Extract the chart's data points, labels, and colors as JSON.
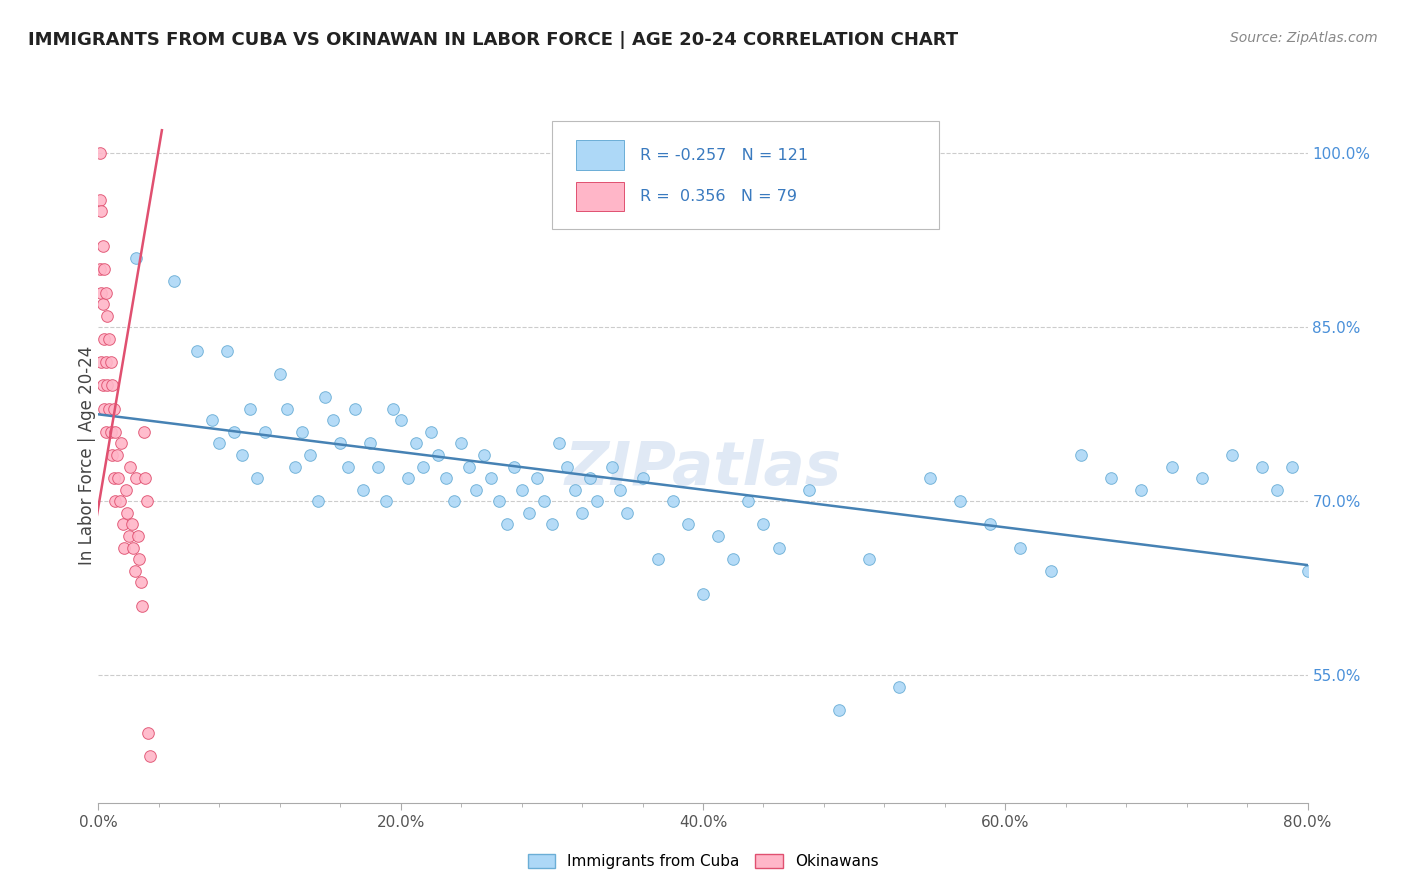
{
  "title": "IMMIGRANTS FROM CUBA VS OKINAWAN IN LABOR FORCE | AGE 20-24 CORRELATION CHART",
  "source": "Source: ZipAtlas.com",
  "ylabel": "In Labor Force | Age 20-24",
  "x_bottom_ticks": [
    "0.0%",
    "",
    "",
    "",
    "",
    "20.0%",
    "",
    "",
    "",
    "",
    "40.0%",
    "",
    "",
    "",
    "",
    "60.0%",
    "",
    "",
    "",
    "",
    "80.0%"
  ],
  "x_tick_vals": [
    0.0,
    0.04,
    0.08,
    0.12,
    0.16,
    0.2,
    0.24,
    0.28,
    0.32,
    0.36,
    0.4,
    0.44,
    0.48,
    0.52,
    0.56,
    0.6,
    0.64,
    0.68,
    0.72,
    0.76,
    0.8
  ],
  "x_tick_labels": [
    "0.0%",
    "",
    "",
    "",
    "",
    "20.0%",
    "",
    "",
    "",
    "",
    "40.0%",
    "",
    "",
    "",
    "",
    "60.0%",
    "",
    "",
    "",
    "",
    "80.0%"
  ],
  "x_range": [
    0.0,
    0.8
  ],
  "y_range": [
    0.44,
    1.04
  ],
  "y_tick_vals": [
    0.55,
    0.7,
    0.85,
    1.0
  ],
  "y_tick_labels": [
    "55.0%",
    "70.0%",
    "85.0%",
    "100.0%"
  ],
  "color_blue": "#add8f7",
  "color_pink": "#ffb6c8",
  "edge_blue": "#6baed6",
  "edge_pink": "#e05070",
  "line_blue_color": "#4682b4",
  "line_pink_color": "#e05070",
  "watermark": "ZIPatlas",
  "blue_line_x": [
    0.0,
    0.8
  ],
  "blue_line_y": [
    0.775,
    0.645
  ],
  "pink_line_x": [
    -0.002,
    0.042
  ],
  "pink_line_y": [
    0.68,
    1.02
  ],
  "cuba_x": [
    0.025,
    0.05,
    0.065,
    0.075,
    0.08,
    0.085,
    0.09,
    0.095,
    0.1,
    0.105,
    0.11,
    0.12,
    0.125,
    0.13,
    0.135,
    0.14,
    0.145,
    0.15,
    0.155,
    0.16,
    0.165,
    0.17,
    0.175,
    0.18,
    0.185,
    0.19,
    0.195,
    0.2,
    0.205,
    0.21,
    0.215,
    0.22,
    0.225,
    0.23,
    0.235,
    0.24,
    0.245,
    0.25,
    0.255,
    0.26,
    0.265,
    0.27,
    0.275,
    0.28,
    0.285,
    0.29,
    0.295,
    0.3,
    0.305,
    0.31,
    0.315,
    0.32,
    0.325,
    0.33,
    0.34,
    0.345,
    0.35,
    0.36,
    0.37,
    0.38,
    0.39,
    0.4,
    0.41,
    0.42,
    0.43,
    0.44,
    0.45,
    0.47,
    0.49,
    0.51,
    0.53,
    0.55,
    0.57,
    0.59,
    0.61,
    0.63,
    0.65,
    0.67,
    0.69,
    0.71,
    0.73,
    0.75,
    0.77,
    0.78,
    0.79,
    0.8
  ],
  "cuba_y": [
    0.91,
    0.89,
    0.83,
    0.77,
    0.75,
    0.83,
    0.76,
    0.74,
    0.78,
    0.72,
    0.76,
    0.81,
    0.78,
    0.73,
    0.76,
    0.74,
    0.7,
    0.79,
    0.77,
    0.75,
    0.73,
    0.78,
    0.71,
    0.75,
    0.73,
    0.7,
    0.78,
    0.77,
    0.72,
    0.75,
    0.73,
    0.76,
    0.74,
    0.72,
    0.7,
    0.75,
    0.73,
    0.71,
    0.74,
    0.72,
    0.7,
    0.68,
    0.73,
    0.71,
    0.69,
    0.72,
    0.7,
    0.68,
    0.75,
    0.73,
    0.71,
    0.69,
    0.72,
    0.7,
    0.73,
    0.71,
    0.69,
    0.72,
    0.65,
    0.7,
    0.68,
    0.62,
    0.67,
    0.65,
    0.7,
    0.68,
    0.66,
    0.71,
    0.52,
    0.65,
    0.54,
    0.72,
    0.7,
    0.68,
    0.66,
    0.64,
    0.74,
    0.72,
    0.71,
    0.73,
    0.72,
    0.74,
    0.73,
    0.71,
    0.73,
    0.64
  ],
  "okinawa_x": [
    0.001,
    0.001,
    0.001,
    0.002,
    0.002,
    0.002,
    0.003,
    0.003,
    0.003,
    0.004,
    0.004,
    0.004,
    0.005,
    0.005,
    0.005,
    0.006,
    0.006,
    0.007,
    0.007,
    0.008,
    0.008,
    0.009,
    0.009,
    0.01,
    0.01,
    0.011,
    0.011,
    0.012,
    0.013,
    0.014,
    0.015,
    0.016,
    0.017,
    0.018,
    0.019,
    0.02,
    0.021,
    0.022,
    0.023,
    0.024,
    0.025,
    0.026,
    0.027,
    0.028,
    0.029,
    0.03,
    0.031,
    0.032,
    0.033,
    0.034
  ],
  "okinawa_y": [
    1.0,
    0.96,
    0.9,
    0.95,
    0.88,
    0.82,
    0.92,
    0.87,
    0.8,
    0.9,
    0.84,
    0.78,
    0.88,
    0.82,
    0.76,
    0.86,
    0.8,
    0.84,
    0.78,
    0.82,
    0.76,
    0.8,
    0.74,
    0.78,
    0.72,
    0.76,
    0.7,
    0.74,
    0.72,
    0.7,
    0.75,
    0.68,
    0.66,
    0.71,
    0.69,
    0.67,
    0.73,
    0.68,
    0.66,
    0.64,
    0.72,
    0.67,
    0.65,
    0.63,
    0.61,
    0.76,
    0.72,
    0.7,
    0.5,
    0.48
  ]
}
